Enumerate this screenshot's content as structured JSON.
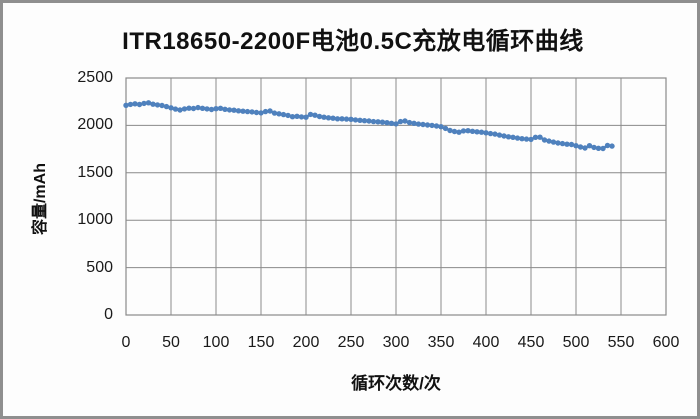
{
  "frame": {
    "border_color": "#8f8f8f",
    "background": "#fdfdfd"
  },
  "chart_data": {
    "type": "line",
    "title": "ITR18650-2200F电池0.5C充放电循环曲线",
    "xlabel": "循环次数/次",
    "ylabel": "容量/mAh",
    "xlim": [
      0,
      600
    ],
    "ylim": [
      0,
      2500
    ],
    "xticks": [
      0,
      50,
      100,
      150,
      200,
      250,
      300,
      350,
      400,
      450,
      500,
      550,
      600
    ],
    "yticks": [
      0,
      500,
      1000,
      1500,
      2000,
      2500
    ],
    "grid": true,
    "legend": "none",
    "gridline_color": "#8a8a8a",
    "series": [
      {
        "name": "容量/mAh",
        "color": "#4f81bd",
        "marker": "round",
        "x": [
          0,
          5,
          10,
          15,
          20,
          25,
          30,
          35,
          40,
          45,
          50,
          55,
          60,
          65,
          70,
          75,
          80,
          85,
          90,
          95,
          100,
          105,
          110,
          115,
          120,
          125,
          130,
          135,
          140,
          145,
          150,
          155,
          160,
          165,
          170,
          175,
          180,
          185,
          190,
          195,
          200,
          205,
          210,
          215,
          220,
          225,
          230,
          235,
          240,
          245,
          250,
          255,
          260,
          265,
          270,
          275,
          280,
          285,
          290,
          295,
          300,
          305,
          310,
          315,
          320,
          325,
          330,
          335,
          340,
          345,
          350,
          355,
          360,
          365,
          370,
          375,
          380,
          385,
          390,
          395,
          400,
          405,
          410,
          415,
          420,
          425,
          430,
          435,
          440,
          445,
          450,
          455,
          460,
          465,
          470,
          475,
          480,
          485,
          490,
          495,
          500,
          505,
          510,
          515,
          520,
          525,
          530,
          535,
          540
        ],
        "y": [
          2212,
          2222,
          2228,
          2220,
          2232,
          2238,
          2224,
          2216,
          2210,
          2198,
          2186,
          2172,
          2162,
          2174,
          2181,
          2178,
          2188,
          2180,
          2174,
          2168,
          2176,
          2180,
          2170,
          2164,
          2160,
          2154,
          2150,
          2146,
          2142,
          2136,
          2132,
          2146,
          2152,
          2130,
          2122,
          2114,
          2106,
          2092,
          2096,
          2090,
          2086,
          2116,
          2108,
          2094,
          2086,
          2080,
          2076,
          2070,
          2070,
          2066,
          2064,
          2058,
          2054,
          2050,
          2046,
          2040,
          2038,
          2034,
          2028,
          2022,
          2016,
          2040,
          2046,
          2030,
          2022,
          2014,
          2010,
          2004,
          2000,
          1994,
          1986,
          1968,
          1946,
          1936,
          1928,
          1942,
          1944,
          1938,
          1932,
          1928,
          1922,
          1914,
          1908,
          1898,
          1888,
          1880,
          1874,
          1866,
          1860,
          1856,
          1852,
          1874,
          1876,
          1846,
          1834,
          1824,
          1814,
          1808,
          1802,
          1798,
          1786,
          1772,
          1762,
          1786,
          1768,
          1758,
          1756,
          1788,
          1782
        ]
      }
    ]
  }
}
